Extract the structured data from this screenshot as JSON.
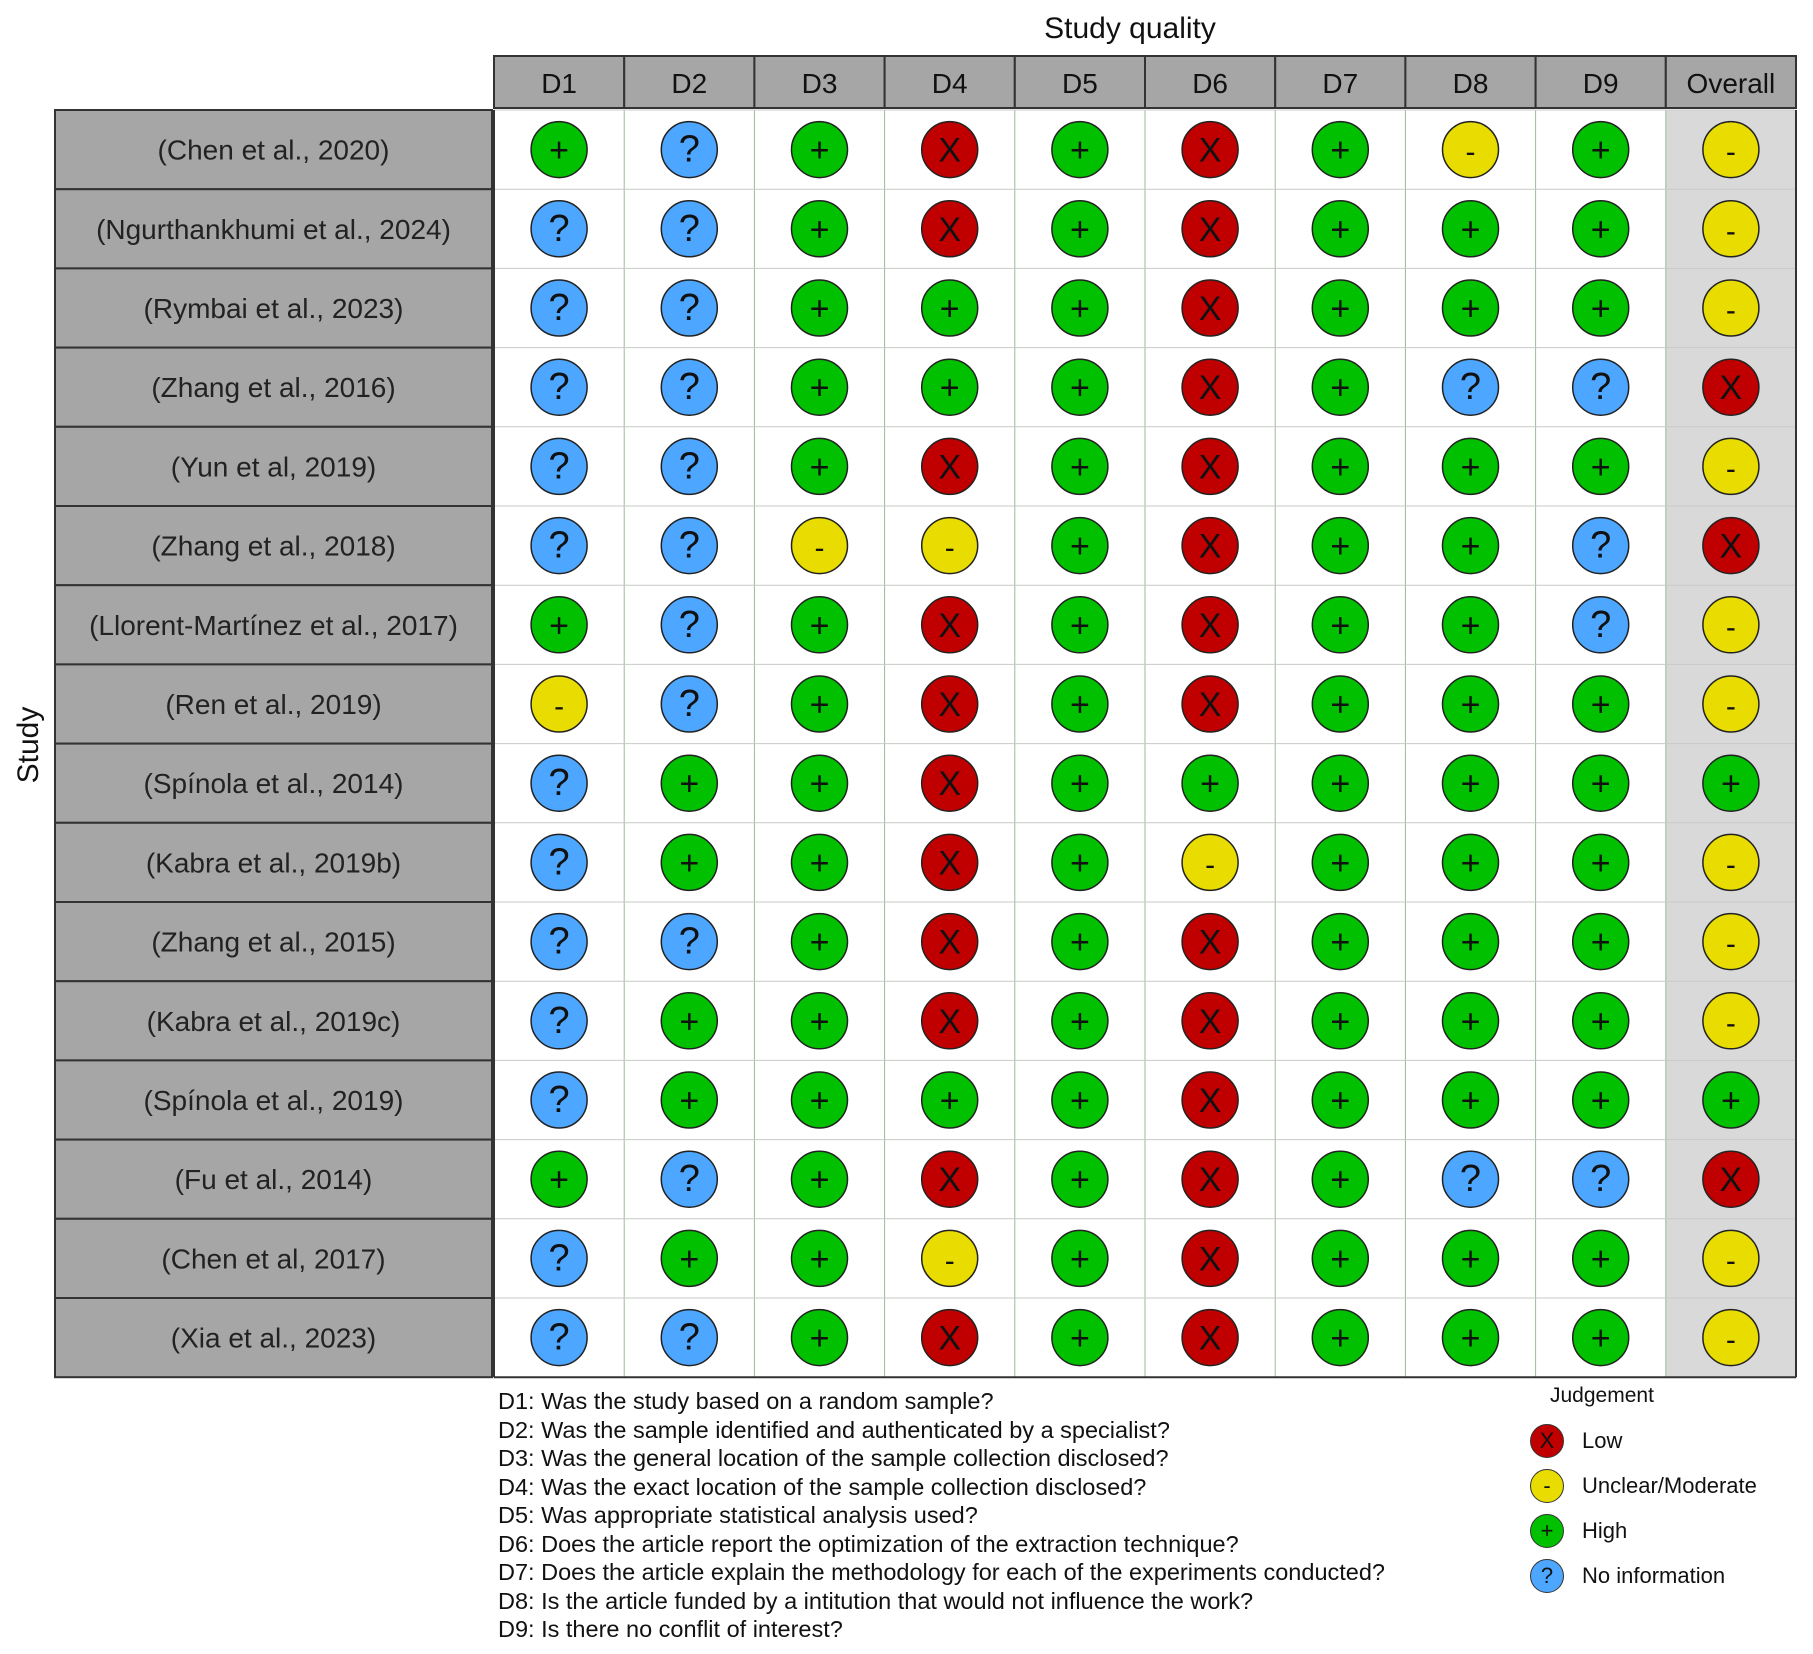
{
  "chart_data": {
    "type": "table",
    "title": "Study quality",
    "ylabel": "Study",
    "columns": [
      "D1",
      "D2",
      "D3",
      "D4",
      "D5",
      "D6",
      "D7",
      "D8",
      "D9",
      "Overall"
    ],
    "rows": [
      {
        "study": "(Chen et al., 2020)",
        "values": [
          "High",
          "No information",
          "High",
          "Low",
          "High",
          "Low",
          "High",
          "Unclear/Moderate",
          "High",
          "Unclear/Moderate"
        ]
      },
      {
        "study": "(Ngurthankhumi et al., 2024)",
        "values": [
          "No information",
          "No information",
          "High",
          "Low",
          "High",
          "Low",
          "High",
          "High",
          "High",
          "Unclear/Moderate"
        ]
      },
      {
        "study": "(Rymbai et al., 2023)",
        "values": [
          "No information",
          "No information",
          "High",
          "High",
          "High",
          "Low",
          "High",
          "High",
          "High",
          "Unclear/Moderate"
        ]
      },
      {
        "study": "(Zhang et al., 2016)",
        "values": [
          "No information",
          "No information",
          "High",
          "High",
          "High",
          "Low",
          "High",
          "No information",
          "No information",
          "Low"
        ]
      },
      {
        "study": "(Yun et al, 2019)",
        "values": [
          "No information",
          "No information",
          "High",
          "Low",
          "High",
          "Low",
          "High",
          "High",
          "High",
          "Unclear/Moderate"
        ]
      },
      {
        "study": "(Zhang et al., 2018)",
        "values": [
          "No information",
          "No information",
          "Unclear/Moderate",
          "Unclear/Moderate",
          "High",
          "Low",
          "High",
          "High",
          "No information",
          "Low"
        ]
      },
      {
        "study": "(Llorent-Martínez et al., 2017)",
        "values": [
          "High",
          "No information",
          "High",
          "Low",
          "High",
          "Low",
          "High",
          "High",
          "No information",
          "Unclear/Moderate"
        ]
      },
      {
        "study": "(Ren et al., 2019)",
        "values": [
          "Unclear/Moderate",
          "No information",
          "High",
          "Low",
          "High",
          "Low",
          "High",
          "High",
          "High",
          "Unclear/Moderate"
        ]
      },
      {
        "study": "(Spínola et al., 2014)",
        "values": [
          "No information",
          "High",
          "High",
          "Low",
          "High",
          "High",
          "High",
          "High",
          "High",
          "High"
        ]
      },
      {
        "study": "(Kabra et al., 2019b)",
        "values": [
          "No information",
          "High",
          "High",
          "Low",
          "High",
          "Unclear/Moderate",
          "High",
          "High",
          "High",
          "Unclear/Moderate"
        ]
      },
      {
        "study": "(Zhang et al., 2015)",
        "values": [
          "No information",
          "No information",
          "High",
          "Low",
          "High",
          "Low",
          "High",
          "High",
          "High",
          "Unclear/Moderate"
        ]
      },
      {
        "study": "(Kabra et al., 2019c)",
        "values": [
          "No information",
          "High",
          "High",
          "Low",
          "High",
          "Low",
          "High",
          "High",
          "High",
          "Unclear/Moderate"
        ]
      },
      {
        "study": "(Spínola et al., 2019)",
        "values": [
          "No information",
          "High",
          "High",
          "High",
          "High",
          "Low",
          "High",
          "High",
          "High",
          "High"
        ]
      },
      {
        "study": "(Fu et al., 2014)",
        "values": [
          "High",
          "No information",
          "High",
          "Low",
          "High",
          "Low",
          "High",
          "No information",
          "No information",
          "Low"
        ]
      },
      {
        "study": "(Chen et al, 2017)",
        "values": [
          "No information",
          "High",
          "High",
          "Unclear/Moderate",
          "High",
          "Low",
          "High",
          "High",
          "High",
          "Unclear/Moderate"
        ]
      },
      {
        "study": "(Xia et al., 2023)",
        "values": [
          "No information",
          "No information",
          "High",
          "Low",
          "High",
          "Low",
          "High",
          "High",
          "High",
          "Unclear/Moderate"
        ]
      }
    ],
    "judgements": {
      "Low": {
        "symbol": "X",
        "color": "#c00000"
      },
      "Unclear/Moderate": {
        "symbol": "-",
        "color": "#e8dc00"
      },
      "High": {
        "symbol": "+",
        "color": "#00c000"
      },
      "No information": {
        "symbol": "?",
        "color": "#4da6ff"
      }
    },
    "legend": {
      "title": "Judgement",
      "position": "bottom-right",
      "items": [
        "Low",
        "Unclear/Moderate",
        "High",
        "No information"
      ]
    },
    "footnotes": [
      "D1: Was the study based on a random sample?",
      "D2: Was the sample identified and authenticated by a specialist?",
      "D3: Was the general location of the sample collection  disclosed?",
      "D4: Was the exact location of the sample collection disclosed?",
      "D5: Was appropriate statistical analysis used?",
      "D6: Does the article report the optimization of the extraction technique?",
      "D7: Does the article explain the methodology for each of the experiments conducted?",
      "D8: Is the article funded by a intitution that would not influence the work?",
      "D9: Is there no conflit of interest?"
    ]
  }
}
